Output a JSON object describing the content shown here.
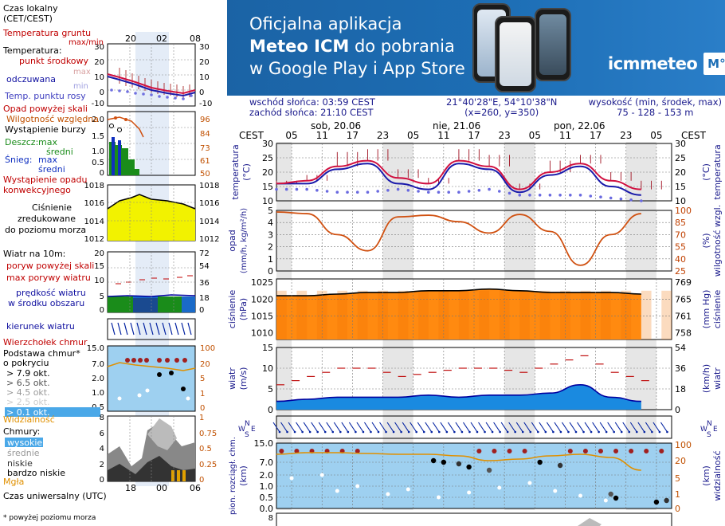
{
  "ad": {
    "line1": "Oficjalna aplikacja",
    "line2_bold": "Meteo ICM",
    "line2_rest": " do pobrania",
    "line3": "w Google Play i App Store",
    "logo_text": "icmmeteo",
    "logo_box": "M°"
  },
  "info": {
    "sunrise": "wschód słońca: 03:59 CEST",
    "sunset": "zachód słońca: 21:10 CEST",
    "coords": "21°40'28\"E, 54°10'38\"N",
    "grid": "(x=260,  y=350)",
    "height_label": "wysokość (min, środek, max)",
    "height_values": "75 - 128 - 153 m"
  },
  "legend": {
    "local_time": "Czas lokalny",
    "local_time2": "(CET/CEST)",
    "local_ticks": [
      "20",
      "02",
      "08"
    ],
    "soil_temp": "Temperatura gruntu",
    "soil_temp2": "max/min",
    "temperature": "Temperatura:",
    "mid_point": "punkt środkowy",
    "max": "max",
    "min": "min",
    "feels_like": "odczuwana",
    "dew_point": "Temp. punktu rosy",
    "precip_above": "Opad powyżej skali",
    "rel_humidity": "Wilgotność względna",
    "storm": "Wystąpienie burzy",
    "rain": "Deszcz:",
    "snow": "Śnieg:",
    "mean": "średni",
    "precip_occurrence": "Wystąpienie opadu",
    "convective": "konwekcyjnego",
    "pressure1": "Ciśnienie",
    "pressure2": "zredukowane",
    "pressure3": "do poziomu morza",
    "wind_title": "Wiatr na 10m:",
    "gust_above": "poryw powyżej skali",
    "max_gust": "max porywy wiatru",
    "wind_speed": "prędkość wiatru",
    "wind_speed2": "w środku obszaru",
    "wind_dir": "kierunek wiatru",
    "cloud_top": "Wierzchołek chmur",
    "cloud_base1": "Podstawa chmur*",
    "cloud_base2": "o pokryciu",
    "okt": [
      "> 7.9 okt.",
      "> 6.5 okt.",
      "> 4.5 okt.",
      "> 2.5 okt.",
      "> 0.1 okt."
    ],
    "visibility": "Widzialność",
    "clouds": "Chmury:",
    "cloud_high": "wysokie",
    "cloud_mid": "średnie",
    "cloud_low": "niskie",
    "cloud_vlow": "bardzo niskie",
    "fog": "Mgła",
    "utc": "Czas uniwersalny (UTC)",
    "utc_ticks": [
      "18",
      "00",
      "06"
    ],
    "footnote": "* powyżej poziomu morza"
  },
  "axis": {
    "cest": "CEST",
    "days": [
      "sob, 20.06",
      "nie, 21.06",
      "pon, 22.06"
    ],
    "hours": [
      "05",
      "11",
      "17",
      "23",
      "05",
      "11",
      "17",
      "23",
      "05",
      "11",
      "17",
      "23",
      "05"
    ],
    "temp_label": "temperatura",
    "temp_unit": "(°C)",
    "precip_label": "opad",
    "precip_unit": "(mm/h, kg/m²/h)",
    "humid_label": "wilgotność wzgl.",
    "humid_unit": "(%)",
    "press_label": "ciśnienie",
    "press_unit_l": "(hPa)",
    "press_unit_r": "(mm Hg)",
    "wind_label": "wiatr",
    "wind_unit_l": "(m/s)",
    "wind_unit_r": "(km/h)",
    "cloud_label": "pion. rozciągł. chm.",
    "cloud_unit": "(km)",
    "vis_label": "widzialność",
    "vis_unit": "(km)",
    "compass": [
      "N",
      "W",
      "S",
      "E"
    ]
  },
  "chart_data": [
    {
      "type": "line",
      "name": "temperature",
      "x_unit": "hour offset from sob 20.06 02:00 CEST",
      "ylim": [
        10,
        30
      ],
      "yticks_left": [
        10,
        15,
        20,
        25,
        30
      ],
      "yticks_right": [
        10,
        15,
        20,
        25,
        30
      ],
      "x": [
        0,
        6,
        12,
        18,
        24,
        30,
        36,
        42,
        48,
        54,
        60,
        66,
        72
      ],
      "mid": [
        16,
        17,
        22,
        24,
        18,
        16,
        24,
        22,
        14,
        20,
        23,
        17,
        14
      ],
      "feels": [
        16,
        16,
        21,
        23,
        16,
        14,
        23,
        21,
        13,
        19,
        22,
        15,
        12
      ],
      "dew": [
        14,
        14,
        13,
        13,
        14,
        13,
        13,
        14,
        12,
        12,
        12,
        11,
        10
      ],
      "max": [
        17,
        19,
        27,
        28,
        21,
        18,
        28,
        26,
        16,
        24,
        26,
        20,
        17
      ]
    },
    {
      "type": "line",
      "name": "humidity",
      "ylim": [
        25,
        100
      ],
      "yticks_left": [
        0,
        1,
        2,
        3,
        4,
        5
      ],
      "yticks_right": [
        25,
        40,
        55,
        70,
        85,
        100
      ],
      "x": [
        0,
        6,
        12,
        18,
        24,
        30,
        36,
        42,
        48,
        54,
        60,
        66,
        72
      ],
      "values": [
        98,
        96,
        70,
        50,
        92,
        94,
        86,
        72,
        95,
        74,
        32,
        70,
        96
      ]
    },
    {
      "type": "line",
      "name": "pressure",
      "ylim": [
        1008,
        1026
      ],
      "yticks_left": [
        1010,
        1015,
        1020,
        1025
      ],
      "yticks_right": [
        758,
        761,
        765,
        769
      ],
      "x": [
        0,
        6,
        12,
        18,
        24,
        30,
        36,
        42,
        48,
        54,
        60,
        66,
        72
      ],
      "values": [
        1021,
        1021,
        1021.5,
        1022,
        1022,
        1022.5,
        1022.5,
        1023,
        1022.5,
        1022,
        1022,
        1022,
        1021.5
      ]
    },
    {
      "type": "area",
      "name": "wind",
      "ylim": [
        0,
        15
      ],
      "yticks_left": [
        0,
        5,
        10,
        15
      ],
      "yticks_right": [
        0,
        18,
        36,
        54
      ],
      "x": [
        0,
        6,
        12,
        18,
        24,
        30,
        36,
        42,
        48,
        54,
        60,
        66,
        72
      ],
      "speed": [
        2,
        2.5,
        3,
        3,
        3,
        3.5,
        3,
        3.5,
        3.5,
        4,
        6,
        3,
        2
      ],
      "gust": [
        6,
        8,
        10,
        10,
        8,
        9,
        10,
        10,
        9,
        11,
        13,
        9,
        7
      ]
    },
    {
      "type": "scatter",
      "name": "cloud base",
      "yticks_left": [
        0.0,
        0.5,
        1.0,
        2.0,
        7.0,
        15.0
      ],
      "yticks_right": [
        0,
        1,
        5,
        20,
        100
      ]
    }
  ]
}
